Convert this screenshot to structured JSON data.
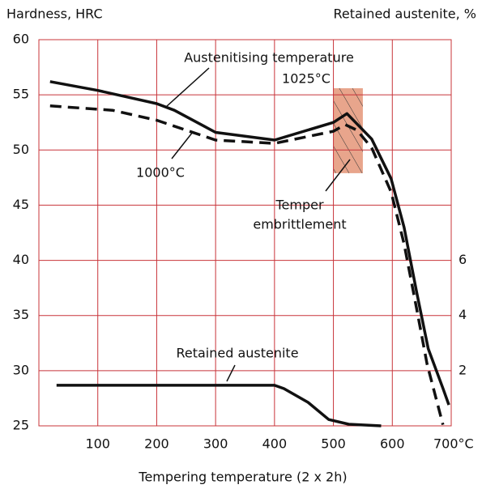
{
  "chart_data": {
    "type": "line",
    "y_label": "Hardness, HRC",
    "y2_label": "Retained austenite, %",
    "x_label": "Tempering temperature (2 x 2h)",
    "xlim": [
      0,
      700
    ],
    "xticks": [
      100,
      200,
      300,
      400,
      500,
      600,
      {
        "value": 700,
        "label": "700°C"
      }
    ],
    "ylim": [
      25,
      60
    ],
    "yticks": [
      25,
      30,
      35,
      40,
      45,
      50,
      55,
      60
    ],
    "y2lim": [
      0,
      14
    ],
    "y2ticks": [
      2,
      4,
      6
    ],
    "grid": true,
    "grid_color": "#c8343a",
    "series": [
      {
        "name": "1025°C",
        "color": "#111111",
        "dash": false,
        "x": [
          19,
          100,
          200,
          230,
          300,
          400,
          500,
          523,
          565,
          598,
          620,
          641,
          661,
          686,
          696
        ],
        "values": [
          56.2,
          55.4,
          54.2,
          53.6,
          51.6,
          50.9,
          52.5,
          53.3,
          51.0,
          47.4,
          43,
          37.2,
          32,
          28.4,
          26.9
        ]
      },
      {
        "name": "1000°C",
        "color": "#111111",
        "dash": true,
        "x": [
          19,
          125,
          200,
          300,
          400,
          500,
          520,
          540,
          565,
          598,
          620,
          641,
          659,
          686
        ],
        "values": [
          54.0,
          53.6,
          52.7,
          50.9,
          50.6,
          51.7,
          52.3,
          51.8,
          50.2,
          46.2,
          41.5,
          35.7,
          30.6,
          25.1
        ]
      },
      {
        "name": "Retained austenite",
        "color": "#111111",
        "dash": false,
        "axis": "y2",
        "x": [
          30,
          400,
          416,
          457,
          492,
          526,
          581
        ],
        "values": [
          1.47,
          1.47,
          1.35,
          0.85,
          0.23,
          0.06,
          0.0
        ]
      }
    ],
    "region": {
      "name": "Temper embrittlement",
      "xlim": [
        500,
        550
      ],
      "ylim": [
        47.9,
        55.6
      ],
      "color": "#e8a58c"
    },
    "annotations": [
      "Austenitising temperature",
      "1025°C",
      "1000°C",
      "Temper",
      "embrittlement",
      "Retained austenite"
    ]
  }
}
